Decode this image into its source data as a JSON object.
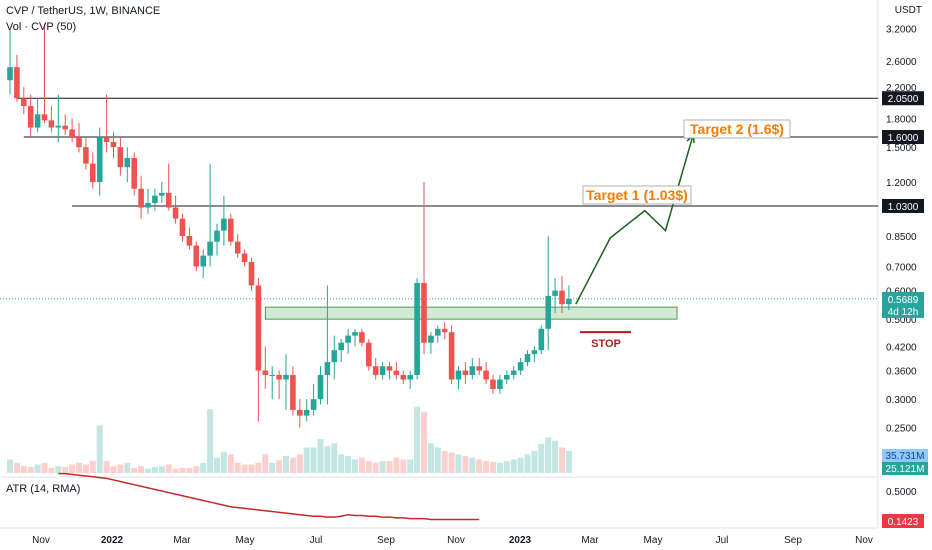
{
  "header": {
    "symbol": "CVP / TetherUS, 1W, BINANCE",
    "volume_label": "Vol · CVP (50)",
    "atr_label": "ATR (14, RMA)"
  },
  "price_axis": {
    "unit": "USDT",
    "ticks": [
      "3.2000",
      "2.6000",
      "2.2000",
      "1.8000",
      "1.5000",
      "1.2000",
      "0.8500",
      "0.7000",
      "0.6000",
      "0.5000",
      "0.4200",
      "0.3600",
      "0.3000",
      "0.2500"
    ],
    "current_price": "0.5689",
    "countdown": "4d 12h",
    "volume_badges": [
      "35.731M",
      "25.121M"
    ]
  },
  "atr_axis": {
    "tick": "0.5000",
    "value_badge": "0.1423"
  },
  "time_axis": [
    "Nov",
    "2022",
    "Mar",
    "May",
    "Jul",
    "Sep",
    "Nov",
    "2023",
    "Mar",
    "May",
    "Jul",
    "Sep",
    "Nov"
  ],
  "levels": [
    {
      "label": "2.0500",
      "price": 2.05
    },
    {
      "label": "1.6000",
      "price": 1.6
    },
    {
      "label": "1.0300",
      "price": 1.03
    }
  ],
  "annotations": {
    "target1": "Target 1 (1.03$)",
    "target2": "Target 2 (1.6$)",
    "stop": "STOP"
  },
  "colors": {
    "up": "#26a69a",
    "down": "#ef5350",
    "zone_fill": "#a5d6a7",
    "zone_stroke": "#2e7d32",
    "projection": "#1b5e20",
    "target_text": "#f57c00",
    "stop": "#b71c1c",
    "atr_line": "#c62828",
    "level_line": "#131722",
    "current_price_badge": "#26a69a",
    "atr_badge": "#f23645"
  },
  "chart_data": {
    "type": "candlestick",
    "interval": "1W",
    "scale": "log",
    "ylim": [
      0.2,
      3.5
    ],
    "candles": [
      {
        "date": "2021-10-11",
        "o": 2.3,
        "h": 3.2,
        "l": 2.1,
        "c": 2.5
      },
      {
        "date": "2021-10-18",
        "o": 2.5,
        "h": 2.7,
        "l": 2.0,
        "c": 2.05
      },
      {
        "date": "2021-10-25",
        "o": 2.05,
        "h": 2.2,
        "l": 1.85,
        "c": 1.95
      },
      {
        "date": "2021-11-01",
        "o": 1.95,
        "h": 2.1,
        "l": 1.6,
        "c": 1.7
      },
      {
        "date": "2021-11-08",
        "o": 1.7,
        "h": 2.05,
        "l": 1.65,
        "c": 1.85
      },
      {
        "date": "2021-11-15",
        "o": 1.85,
        "h": 3.3,
        "l": 1.75,
        "c": 1.78
      },
      {
        "date": "2021-11-22",
        "o": 1.78,
        "h": 1.95,
        "l": 1.65,
        "c": 1.7
      },
      {
        "date": "2021-11-29",
        "o": 1.7,
        "h": 2.1,
        "l": 1.55,
        "c": 1.72
      },
      {
        "date": "2021-12-06",
        "o": 1.72,
        "h": 1.85,
        "l": 1.62,
        "c": 1.68
      },
      {
        "date": "2021-12-13",
        "o": 1.68,
        "h": 1.8,
        "l": 1.55,
        "c": 1.6
      },
      {
        "date": "2021-12-20",
        "o": 1.6,
        "h": 1.75,
        "l": 1.45,
        "c": 1.5
      },
      {
        "date": "2021-12-27",
        "o": 1.5,
        "h": 1.6,
        "l": 1.3,
        "c": 1.35
      },
      {
        "date": "2022-01-03",
        "o": 1.35,
        "h": 1.45,
        "l": 1.15,
        "c": 1.2
      },
      {
        "date": "2022-01-10",
        "o": 1.2,
        "h": 1.7,
        "l": 1.1,
        "c": 1.6
      },
      {
        "date": "2022-01-17",
        "o": 1.6,
        "h": 2.1,
        "l": 1.45,
        "c": 1.55
      },
      {
        "date": "2022-01-24",
        "o": 1.55,
        "h": 1.65,
        "l": 1.4,
        "c": 1.5
      },
      {
        "date": "2022-01-31",
        "o": 1.5,
        "h": 1.6,
        "l": 1.25,
        "c": 1.32
      },
      {
        "date": "2022-02-07",
        "o": 1.32,
        "h": 1.5,
        "l": 1.2,
        "c": 1.4
      },
      {
        "date": "2022-02-14",
        "o": 1.4,
        "h": 1.45,
        "l": 1.1,
        "c": 1.15
      },
      {
        "date": "2022-02-21",
        "o": 1.15,
        "h": 1.25,
        "l": 0.95,
        "c": 1.02
      },
      {
        "date": "2022-02-28",
        "o": 1.02,
        "h": 1.15,
        "l": 0.98,
        "c": 1.05
      },
      {
        "date": "2022-03-07",
        "o": 1.05,
        "h": 1.15,
        "l": 1.0,
        "c": 1.1
      },
      {
        "date": "2022-03-14",
        "o": 1.1,
        "h": 1.2,
        "l": 1.05,
        "c": 1.12
      },
      {
        "date": "2022-03-21",
        "o": 1.12,
        "h": 1.35,
        "l": 1.0,
        "c": 1.02
      },
      {
        "date": "2022-03-28",
        "o": 1.02,
        "h": 1.1,
        "l": 0.92,
        "c": 0.95
      },
      {
        "date": "2022-04-04",
        "o": 0.95,
        "h": 0.98,
        "l": 0.82,
        "c": 0.85
      },
      {
        "date": "2022-04-11",
        "o": 0.85,
        "h": 0.9,
        "l": 0.78,
        "c": 0.8
      },
      {
        "date": "2022-04-18",
        "o": 0.8,
        "h": 0.82,
        "l": 0.68,
        "c": 0.7
      },
      {
        "date": "2022-04-25",
        "o": 0.7,
        "h": 0.78,
        "l": 0.65,
        "c": 0.75
      },
      {
        "date": "2022-05-02",
        "o": 0.75,
        "h": 1.35,
        "l": 0.7,
        "c": 0.82
      },
      {
        "date": "2022-05-09",
        "o": 0.82,
        "h": 0.92,
        "l": 0.75,
        "c": 0.88
      },
      {
        "date": "2022-05-16",
        "o": 0.88,
        "h": 1.1,
        "l": 0.8,
        "c": 0.95
      },
      {
        "date": "2022-05-23",
        "o": 0.95,
        "h": 0.98,
        "l": 0.8,
        "c": 0.82
      },
      {
        "date": "2022-05-30",
        "o": 0.82,
        "h": 0.86,
        "l": 0.74,
        "c": 0.76
      },
      {
        "date": "2022-06-06",
        "o": 0.76,
        "h": 0.78,
        "l": 0.7,
        "c": 0.72
      },
      {
        "date": "2022-06-13",
        "o": 0.72,
        "h": 0.74,
        "l": 0.6,
        "c": 0.62
      },
      {
        "date": "2022-06-20",
        "o": 0.62,
        "h": 0.65,
        "l": 0.26,
        "c": 0.36
      },
      {
        "date": "2022-06-27",
        "o": 0.36,
        "h": 0.42,
        "l": 0.32,
        "c": 0.35
      },
      {
        "date": "2022-07-04",
        "o": 0.35,
        "h": 0.37,
        "l": 0.3,
        "c": 0.35
      },
      {
        "date": "2022-07-11",
        "o": 0.35,
        "h": 0.36,
        "l": 0.3,
        "c": 0.34
      },
      {
        "date": "2022-07-18",
        "o": 0.34,
        "h": 0.4,
        "l": 0.28,
        "c": 0.35
      },
      {
        "date": "2022-07-25",
        "o": 0.35,
        "h": 0.37,
        "l": 0.27,
        "c": 0.28
      },
      {
        "date": "2022-08-01",
        "o": 0.28,
        "h": 0.3,
        "l": 0.25,
        "c": 0.27
      },
      {
        "date": "2022-08-08",
        "o": 0.27,
        "h": 0.3,
        "l": 0.26,
        "c": 0.28
      },
      {
        "date": "2022-08-15",
        "o": 0.28,
        "h": 0.33,
        "l": 0.27,
        "c": 0.3
      },
      {
        "date": "2022-08-22",
        "o": 0.3,
        "h": 0.37,
        "l": 0.29,
        "c": 0.35
      },
      {
        "date": "2022-08-29",
        "o": 0.35,
        "h": 0.62,
        "l": 0.29,
        "c": 0.38
      },
      {
        "date": "2022-09-05",
        "o": 0.38,
        "h": 0.45,
        "l": 0.34,
        "c": 0.41
      },
      {
        "date": "2022-09-12",
        "o": 0.41,
        "h": 0.44,
        "l": 0.38,
        "c": 0.43
      },
      {
        "date": "2022-09-19",
        "o": 0.43,
        "h": 0.47,
        "l": 0.4,
        "c": 0.45
      },
      {
        "date": "2022-09-26",
        "o": 0.45,
        "h": 0.47,
        "l": 0.42,
        "c": 0.46
      },
      {
        "date": "2022-10-03",
        "o": 0.46,
        "h": 0.47,
        "l": 0.42,
        "c": 0.43
      },
      {
        "date": "2022-10-10",
        "o": 0.43,
        "h": 0.44,
        "l": 0.36,
        "c": 0.37
      },
      {
        "date": "2022-10-17",
        "o": 0.37,
        "h": 0.39,
        "l": 0.34,
        "c": 0.35
      },
      {
        "date": "2022-10-24",
        "o": 0.35,
        "h": 0.38,
        "l": 0.34,
        "c": 0.37
      },
      {
        "date": "2022-10-31",
        "o": 0.37,
        "h": 0.38,
        "l": 0.34,
        "c": 0.36
      },
      {
        "date": "2022-11-07",
        "o": 0.36,
        "h": 0.38,
        "l": 0.34,
        "c": 0.35
      },
      {
        "date": "2022-11-14",
        "o": 0.35,
        "h": 0.36,
        "l": 0.33,
        "c": 0.34
      },
      {
        "date": "2022-11-21",
        "o": 0.34,
        "h": 0.36,
        "l": 0.32,
        "c": 0.35
      },
      {
        "date": "2022-11-28",
        "o": 0.35,
        "h": 0.65,
        "l": 0.34,
        "c": 0.63
      },
      {
        "date": "2022-12-05",
        "o": 0.63,
        "h": 1.2,
        "l": 0.4,
        "c": 0.43
      },
      {
        "date": "2022-12-12",
        "o": 0.43,
        "h": 0.46,
        "l": 0.4,
        "c": 0.45
      },
      {
        "date": "2022-12-19",
        "o": 0.45,
        "h": 0.48,
        "l": 0.43,
        "c": 0.47
      },
      {
        "date": "2022-12-26",
        "o": 0.47,
        "h": 0.49,
        "l": 0.44,
        "c": 0.46
      },
      {
        "date": "2023-01-02",
        "o": 0.46,
        "h": 0.48,
        "l": 0.33,
        "c": 0.34
      },
      {
        "date": "2023-01-09",
        "o": 0.34,
        "h": 0.37,
        "l": 0.32,
        "c": 0.36
      },
      {
        "date": "2023-01-16",
        "o": 0.36,
        "h": 0.38,
        "l": 0.33,
        "c": 0.35
      },
      {
        "date": "2023-01-23",
        "o": 0.35,
        "h": 0.39,
        "l": 0.34,
        "c": 0.37
      },
      {
        "date": "2023-01-30",
        "o": 0.37,
        "h": 0.39,
        "l": 0.35,
        "c": 0.36
      },
      {
        "date": "2023-02-06",
        "o": 0.36,
        "h": 0.38,
        "l": 0.33,
        "c": 0.34
      },
      {
        "date": "2023-02-13",
        "o": 0.34,
        "h": 0.35,
        "l": 0.31,
        "c": 0.32
      },
      {
        "date": "2023-02-20",
        "o": 0.32,
        "h": 0.35,
        "l": 0.31,
        "c": 0.34
      },
      {
        "date": "2023-02-27",
        "o": 0.34,
        "h": 0.36,
        "l": 0.33,
        "c": 0.35
      },
      {
        "date": "2023-03-06",
        "o": 0.35,
        "h": 0.37,
        "l": 0.34,
        "c": 0.36
      },
      {
        "date": "2023-03-13",
        "o": 0.36,
        "h": 0.39,
        "l": 0.35,
        "c": 0.38
      },
      {
        "date": "2023-03-20",
        "o": 0.38,
        "h": 0.41,
        "l": 0.37,
        "c": 0.4
      },
      {
        "date": "2023-03-27",
        "o": 0.4,
        "h": 0.42,
        "l": 0.38,
        "c": 0.41
      },
      {
        "date": "2023-04-03",
        "o": 0.41,
        "h": 0.48,
        "l": 0.4,
        "c": 0.47
      },
      {
        "date": "2023-04-10",
        "o": 0.47,
        "h": 0.85,
        "l": 0.41,
        "c": 0.58
      },
      {
        "date": "2023-04-17",
        "o": 0.58,
        "h": 0.65,
        "l": 0.52,
        "c": 0.6
      },
      {
        "date": "2023-04-24",
        "o": 0.6,
        "h": 0.66,
        "l": 0.52,
        "c": 0.55
      },
      {
        "date": "2023-05-01",
        "o": 0.55,
        "h": 0.62,
        "l": 0.53,
        "c": 0.5689
      }
    ],
    "volume": [
      0.16,
      0.12,
      0.08,
      0.07,
      0.1,
      0.12,
      0.06,
      0.08,
      0.07,
      0.1,
      0.12,
      0.1,
      0.14,
      0.56,
      0.14,
      0.08,
      0.1,
      0.12,
      0.06,
      0.08,
      0.05,
      0.07,
      0.08,
      0.1,
      0.05,
      0.06,
      0.06,
      0.08,
      0.12,
      0.75,
      0.18,
      0.25,
      0.22,
      0.12,
      0.1,
      0.1,
      0.12,
      0.22,
      0.12,
      0.15,
      0.2,
      0.18,
      0.22,
      0.3,
      0.3,
      0.4,
      0.32,
      0.35,
      0.22,
      0.2,
      0.16,
      0.18,
      0.14,
      0.12,
      0.14,
      0.14,
      0.18,
      0.16,
      0.16,
      0.78,
      0.72,
      0.35,
      0.3,
      0.26,
      0.24,
      0.22,
      0.2,
      0.18,
      0.16,
      0.14,
      0.13,
      0.12,
      0.14,
      0.16,
      0.18,
      0.22,
      0.26,
      0.34,
      0.42,
      0.38,
      0.3,
      0.26
    ],
    "atr": [
      0.72,
      0.72,
      0.71,
      0.7,
      0.69,
      0.68,
      0.67,
      0.66,
      0.64,
      0.62,
      0.6,
      0.58,
      0.56,
      0.54,
      0.52,
      0.5,
      0.48,
      0.46,
      0.44,
      0.42,
      0.4,
      0.38,
      0.36,
      0.34,
      0.32,
      0.3,
      0.29,
      0.28,
      0.27,
      0.26,
      0.25,
      0.24,
      0.23,
      0.22,
      0.21,
      0.2,
      0.19,
      0.18,
      0.18,
      0.17,
      0.17,
      0.18,
      0.2,
      0.19,
      0.19,
      0.18,
      0.18,
      0.17,
      0.17,
      0.16,
      0.16,
      0.15,
      0.15,
      0.15,
      0.14,
      0.14,
      0.14,
      0.14,
      0.14,
      0.14,
      0.14,
      0.14
    ],
    "zone": [
      0.5,
      0.54
    ],
    "stop": 0.46,
    "projection": [
      {
        "date": "2023-05-08",
        "price": 0.55
      },
      {
        "date": "2023-06-12",
        "price": 0.84
      },
      {
        "date": "2023-07-17",
        "price": 1.0
      },
      {
        "date": "2023-08-07",
        "price": 0.88
      },
      {
        "date": "2023-09-04",
        "price": 1.62
      }
    ]
  }
}
